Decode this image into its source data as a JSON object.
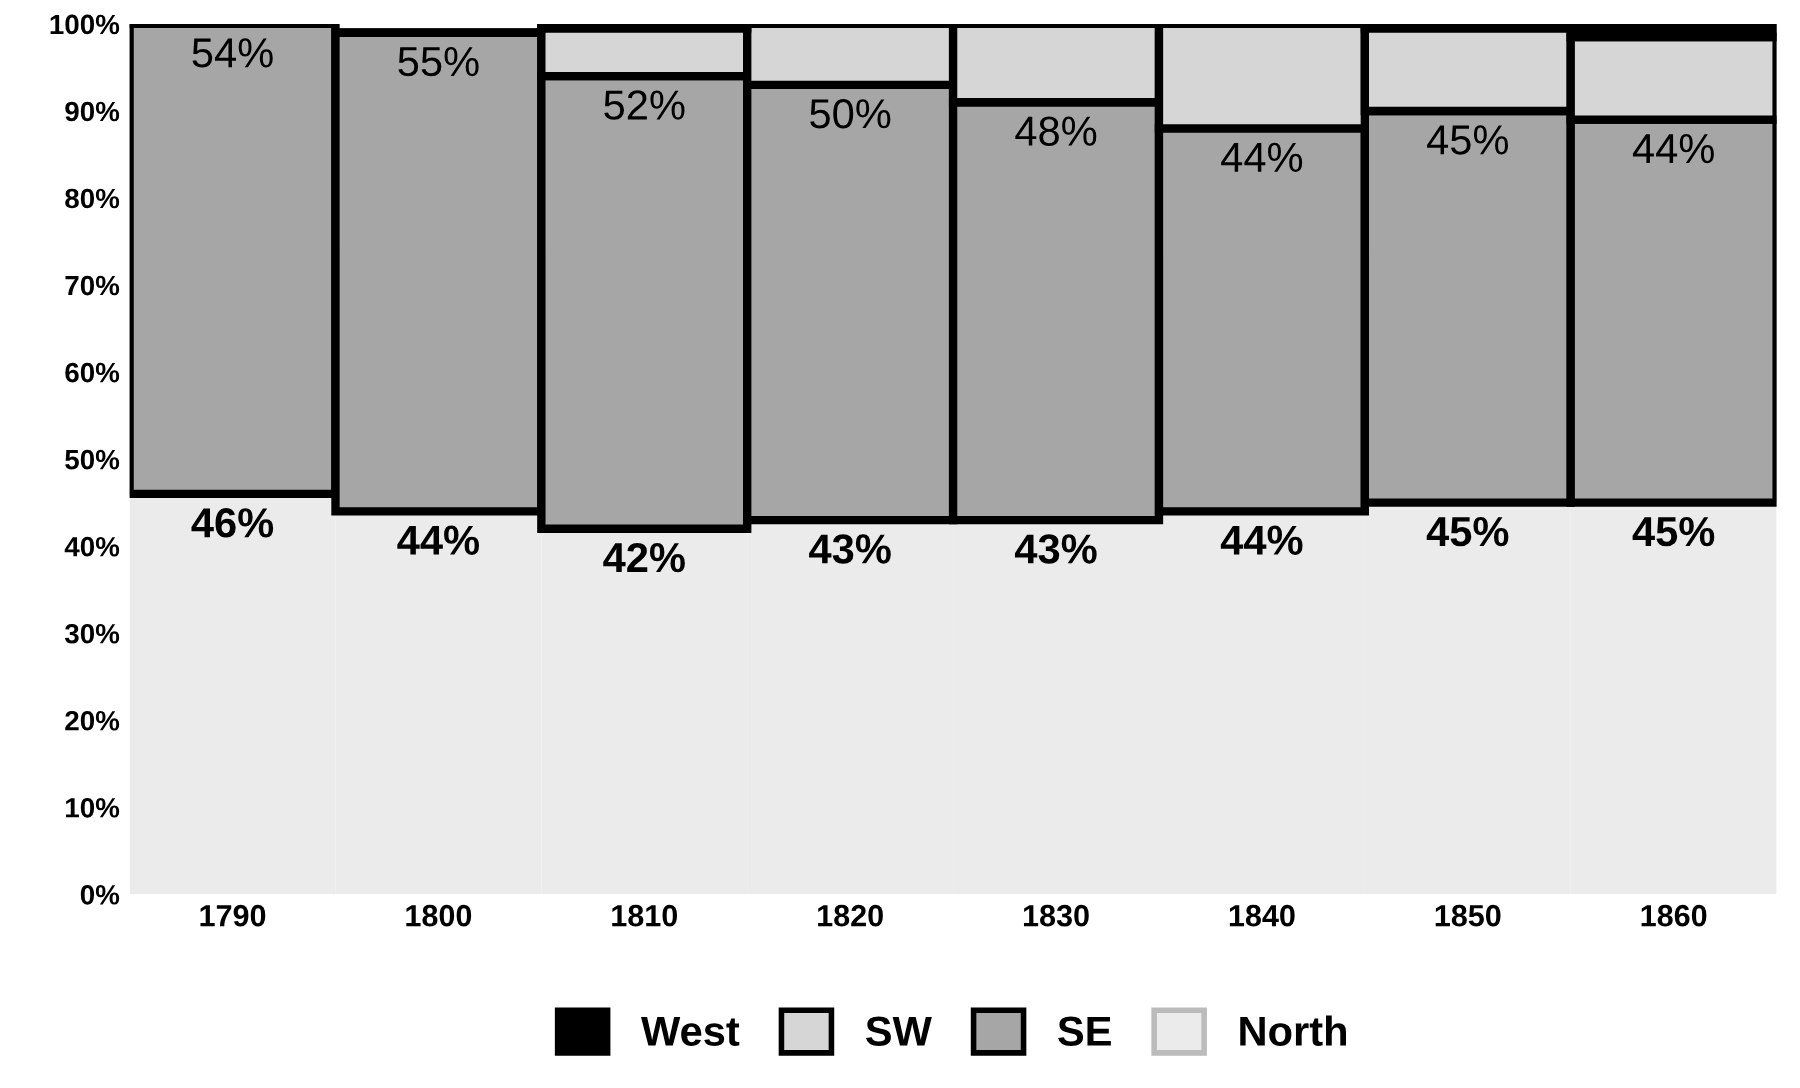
{
  "chart_data": {
    "type": "bar",
    "stacked": true,
    "categories": [
      "1790",
      "1800",
      "1810",
      "1820",
      "1830",
      "1840",
      "1850",
      "1860"
    ],
    "series": [
      {
        "name": "North",
        "color": "#ebebeb",
        "values": [
          46,
          44,
          42,
          43,
          43,
          44,
          45,
          45
        ],
        "value_labels": [
          "46%",
          "44%",
          "42%",
          "43%",
          "43%",
          "44%",
          "45%",
          "45%"
        ]
      },
      {
        "name": "SE",
        "color": "#a6a6a6",
        "values": [
          54,
          55,
          52,
          50,
          48,
          44,
          45,
          44
        ],
        "value_labels": [
          "54%",
          "55%",
          "52%",
          "50%",
          "48%",
          "44%",
          "45%",
          "44%"
        ]
      },
      {
        "name": "SW",
        "color": "#d6d6d6",
        "values": [
          0,
          null,
          5.5,
          7,
          9,
          12,
          9.5,
          9.5
        ]
      },
      {
        "name": "West",
        "color": "#000000",
        "values": [
          0,
          null,
          0.5,
          0,
          0,
          0,
          0.5,
          1.5
        ]
      }
    ],
    "ylim": [
      0,
      100
    ],
    "yticks": [
      {
        "value": 0,
        "label": "0%"
      },
      {
        "value": 10,
        "label": "10%"
      },
      {
        "value": 20,
        "label": "20%"
      },
      {
        "value": 30,
        "label": "30%"
      },
      {
        "value": 40,
        "label": "40%"
      },
      {
        "value": 50,
        "label": "50%"
      },
      {
        "value": 60,
        "label": "60%"
      },
      {
        "value": 70,
        "label": "70%"
      },
      {
        "value": 80,
        "label": "80%"
      },
      {
        "value": 90,
        "label": "90%"
      },
      {
        "value": 100,
        "label": "100%"
      }
    ],
    "grid": false,
    "legend": "bottom"
  }
}
